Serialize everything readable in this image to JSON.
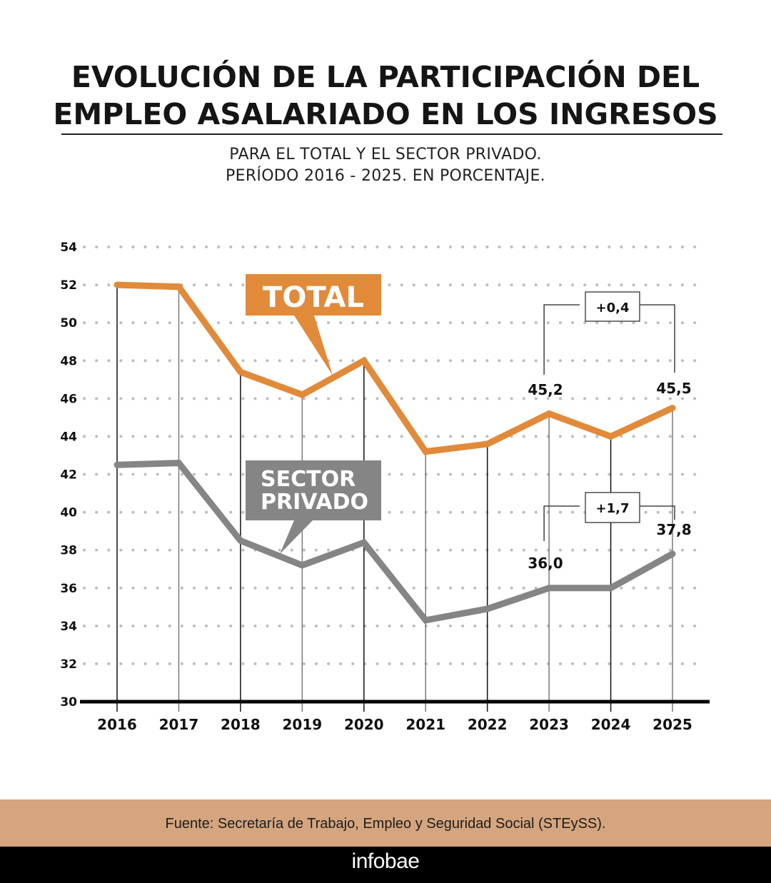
{
  "header": {
    "title_line1": "EVOLUCIÓN DE LA PARTICIPACIÓN DEL",
    "title_line2": "EMPLEO ASALARIADO EN LOS INGRESOS",
    "subtitle_line1": "PARA EL TOTAL Y EL SECTOR PRIVADO.",
    "subtitle_line2": "PERÍODO 2016 - 2025. EN PORCENTAJE."
  },
  "colors": {
    "total": "#E08A3A",
    "privado": "#858585",
    "footer_band": "#D4A57F",
    "brand_band": "#000000"
  },
  "chart_data": {
    "type": "line",
    "title": "EVOLUCIÓN DE LA PARTICIPACIÓN DEL EMPLEO ASALARIADO EN LOS INGRESOS",
    "subtitle": "PARA EL TOTAL Y EL SECTOR PRIVADO. PERÍODO 2016 - 2025. EN PORCENTAJE.",
    "xlabel": "",
    "ylabel": "",
    "x": [
      "2016",
      "2017",
      "2018",
      "2019",
      "2020",
      "2021",
      "2022",
      "2023",
      "2024",
      "2025"
    ],
    "ylim": [
      30,
      54
    ],
    "yticks": [
      "30",
      "32",
      "34",
      "36",
      "38",
      "40",
      "42",
      "44",
      "46",
      "48",
      "50",
      "52",
      "54"
    ],
    "grid": "horizontal-dotted",
    "series": [
      {
        "name": "TOTAL",
        "color": "#E08A3A",
        "values": [
          52.0,
          51.9,
          47.4,
          46.2,
          48.0,
          43.2,
          43.6,
          45.2,
          44.0,
          45.5
        ]
      },
      {
        "name": "SECTOR PRIVADO",
        "color": "#858585",
        "values": [
          42.5,
          42.6,
          38.5,
          37.2,
          38.4,
          34.3,
          34.9,
          36.0,
          36.0,
          37.8
        ]
      }
    ],
    "series_tags": [
      {
        "series": 0,
        "lines": [
          "TOTAL"
        ],
        "points_to": "2019-2020"
      },
      {
        "series": 1,
        "lines": [
          "SECTOR",
          "PRIVADO"
        ],
        "points_to": "2018-2019"
      }
    ],
    "annotations": [
      {
        "series": 0,
        "from": "2023",
        "to": "2025",
        "from_label": "45,2",
        "to_label": "45,5",
        "diff": "+0,4"
      },
      {
        "series": 1,
        "from": "2023",
        "to": "2025",
        "from_label": "36,0",
        "to_label": "37,8",
        "diff": "+1,7"
      }
    ]
  },
  "footer": {
    "source": "Fuente: Secretaría de Trabajo, Empleo y Seguridad Social (STEySS).",
    "brand": "infobae"
  }
}
